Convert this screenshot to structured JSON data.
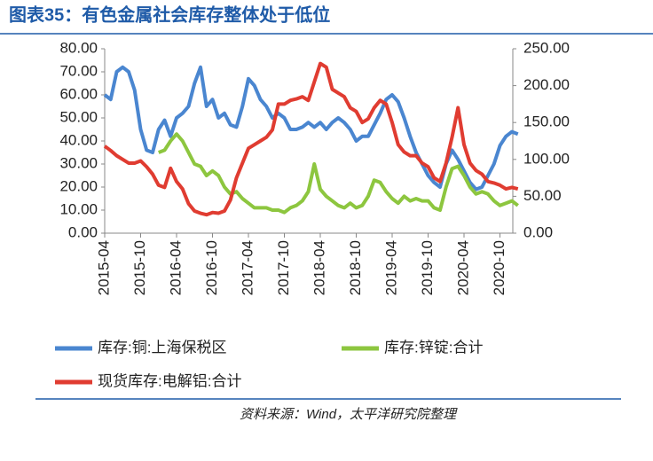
{
  "chart_data": {
    "type": "line",
    "title": "图表35：有色金属社会库存整体处于低位",
    "source": "资料来源：Wind，太平洋研究院整理",
    "categories": [
      "2015-04",
      null,
      null,
      null,
      null,
      null,
      "2015-10",
      null,
      null,
      null,
      null,
      null,
      "2016-04",
      null,
      null,
      null,
      null,
      null,
      "2016-10",
      null,
      null,
      null,
      null,
      null,
      "2017-04",
      null,
      null,
      null,
      null,
      null,
      "2017-10",
      null,
      null,
      null,
      null,
      null,
      "2018-04",
      null,
      null,
      null,
      null,
      null,
      "2018-10",
      null,
      null,
      null,
      null,
      null,
      "2019-04",
      null,
      null,
      null,
      null,
      null,
      "2019-10",
      null,
      null,
      null,
      null,
      null,
      "2020-04",
      null,
      null,
      null,
      null,
      null,
      "2020-10",
      null,
      null,
      null
    ],
    "ylim": [
      0,
      80
    ],
    "yticks": [
      {
        "value": 0,
        "label": "0.00"
      },
      {
        "value": 10,
        "label": "10.00"
      },
      {
        "value": 20,
        "label": "20.00"
      },
      {
        "value": 30,
        "label": "30.00"
      },
      {
        "value": 40,
        "label": "40.00"
      },
      {
        "value": 50,
        "label": "50.00"
      },
      {
        "value": 60,
        "label": "60.00"
      },
      {
        "value": 70,
        "label": "70.00"
      },
      {
        "value": 80,
        "label": "80.00"
      }
    ],
    "y2lim": [
      0,
      250
    ],
    "y2ticks": [
      {
        "value": 0,
        "label": "0.00"
      },
      {
        "value": 50,
        "label": "50.00"
      },
      {
        "value": 100,
        "label": "100.00"
      },
      {
        "value": 150,
        "label": "150.00"
      },
      {
        "value": 200,
        "label": "200.00"
      },
      {
        "value": 250,
        "label": "250.00"
      }
    ],
    "series": [
      {
        "name": "库存:铜:上海保税区",
        "color": "#4a86d0",
        "values": [
          60,
          58,
          70,
          72,
          70,
          62,
          45,
          36,
          35,
          45,
          49,
          42,
          50,
          52,
          55,
          65,
          72,
          55,
          58,
          50,
          52,
          47,
          46,
          55,
          67,
          64,
          58,
          55,
          50,
          52,
          50,
          45,
          45,
          46,
          48,
          46,
          48,
          45,
          48,
          50,
          48,
          45,
          40,
          42,
          42,
          47,
          52,
          58,
          60,
          57,
          50,
          42,
          35,
          30,
          25,
          22,
          20,
          30,
          36,
          32,
          27,
          22,
          19,
          20,
          25,
          30,
          38,
          42,
          44,
          43
        ]
      },
      {
        "name": "库存:锌锭:合计",
        "color": "#8dc63f",
        "values": [
          null,
          null,
          null,
          null,
          null,
          null,
          null,
          null,
          null,
          35,
          36,
          40,
          43,
          40,
          35,
          30,
          29,
          25,
          27,
          25,
          20,
          17,
          18,
          15,
          13,
          11,
          11,
          11,
          10,
          10,
          9,
          11,
          12,
          14,
          18,
          30,
          19,
          16,
          14,
          12,
          11,
          13,
          11,
          12,
          16,
          23,
          22,
          18,
          15,
          13,
          16,
          14,
          15,
          14,
          14,
          11,
          10,
          20,
          28,
          29,
          25,
          20,
          17,
          18,
          17,
          14,
          12,
          13,
          14,
          12
        ]
      },
      {
        "name": "现货库存:电解铝:合计",
        "color": "#e03c31",
        "axis": "y2",
        "values": [
          118,
          112,
          105,
          100,
          95,
          95,
          98,
          90,
          80,
          65,
          62,
          88,
          70,
          60,
          40,
          30,
          27,
          25,
          28,
          27,
          30,
          45,
          75,
          95,
          115,
          120,
          125,
          130,
          140,
          175,
          175,
          180,
          182,
          185,
          180,
          205,
          230,
          225,
          195,
          190,
          185,
          170,
          165,
          150,
          155,
          170,
          180,
          175,
          150,
          120,
          110,
          105,
          105,
          95,
          90,
          75,
          70,
          95,
          130,
          170,
          120,
          95,
          85,
          80,
          70,
          68,
          65,
          60,
          62,
          60
        ]
      }
    ]
  }
}
